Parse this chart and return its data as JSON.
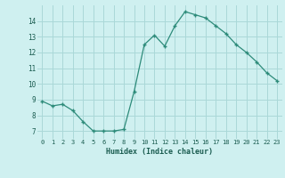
{
  "x": [
    0,
    1,
    2,
    3,
    4,
    5,
    6,
    7,
    8,
    9,
    10,
    11,
    12,
    13,
    14,
    15,
    16,
    17,
    18,
    19,
    20,
    21,
    22,
    23
  ],
  "y": [
    8.9,
    8.6,
    8.7,
    8.3,
    7.6,
    7.0,
    7.0,
    7.0,
    7.1,
    9.5,
    12.5,
    13.1,
    12.4,
    13.7,
    14.6,
    14.4,
    14.2,
    13.7,
    13.2,
    12.5,
    12.0,
    11.4,
    10.7,
    10.2
  ],
  "xlabel": "Humidex (Indice chaleur)",
  "line_color": "#2d8b7a",
  "bg_color": "#cff0f0",
  "grid_color": "#aad8d8",
  "text_color": "#1a5c50",
  "ylim": [
    6.5,
    15.0
  ],
  "yticks": [
    7,
    8,
    9,
    10,
    11,
    12,
    13,
    14
  ],
  "xlim": [
    -0.5,
    23.5
  ],
  "xticks": [
    0,
    1,
    2,
    3,
    4,
    5,
    6,
    7,
    8,
    9,
    10,
    11,
    12,
    13,
    14,
    15,
    16,
    17,
    18,
    19,
    20,
    21,
    22,
    23
  ],
  "xtick_labels": [
    "0",
    "1",
    "2",
    "3",
    "4",
    "5",
    "6",
    "7",
    "8",
    "9",
    "10",
    "11",
    "12",
    "13",
    "14",
    "15",
    "16",
    "17",
    "18",
    "19",
    "20",
    "21",
    "22",
    "23"
  ]
}
